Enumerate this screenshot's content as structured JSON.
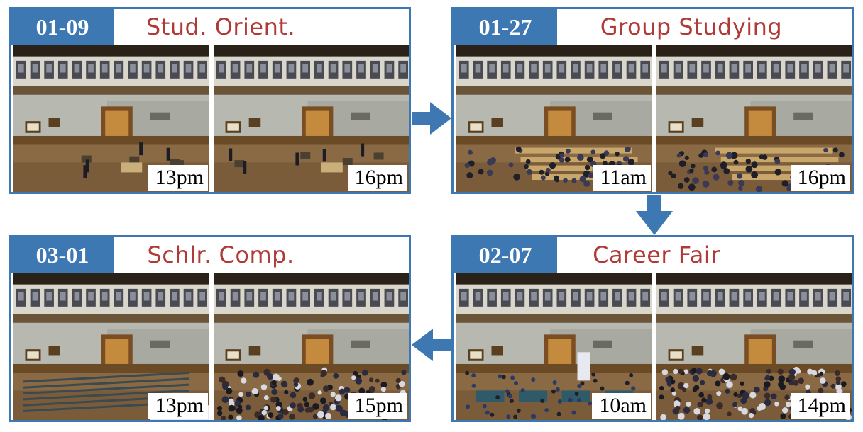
{
  "panels": [
    {
      "date": "01-09",
      "title": "Stud. Orient.",
      "times": [
        "13pm",
        "16pm"
      ],
      "crowd": [
        "sparse",
        "sparse"
      ]
    },
    {
      "date": "01-27",
      "title": "Group Studying",
      "times": [
        "11am",
        "16pm"
      ],
      "crowd": [
        "medium",
        "medium"
      ]
    },
    {
      "date": "02-07",
      "title": "Career Fair",
      "times": [
        "10am",
        "14pm"
      ],
      "crowd": [
        "booths",
        "dense"
      ]
    },
    {
      "date": "03-01",
      "title": "Schlr. Comp.",
      "times": [
        "13pm",
        "15pm"
      ],
      "crowd": [
        "chairs",
        "dense"
      ]
    }
  ],
  "colors": {
    "accent": "#3d78b3",
    "title": "#b03a36"
  }
}
